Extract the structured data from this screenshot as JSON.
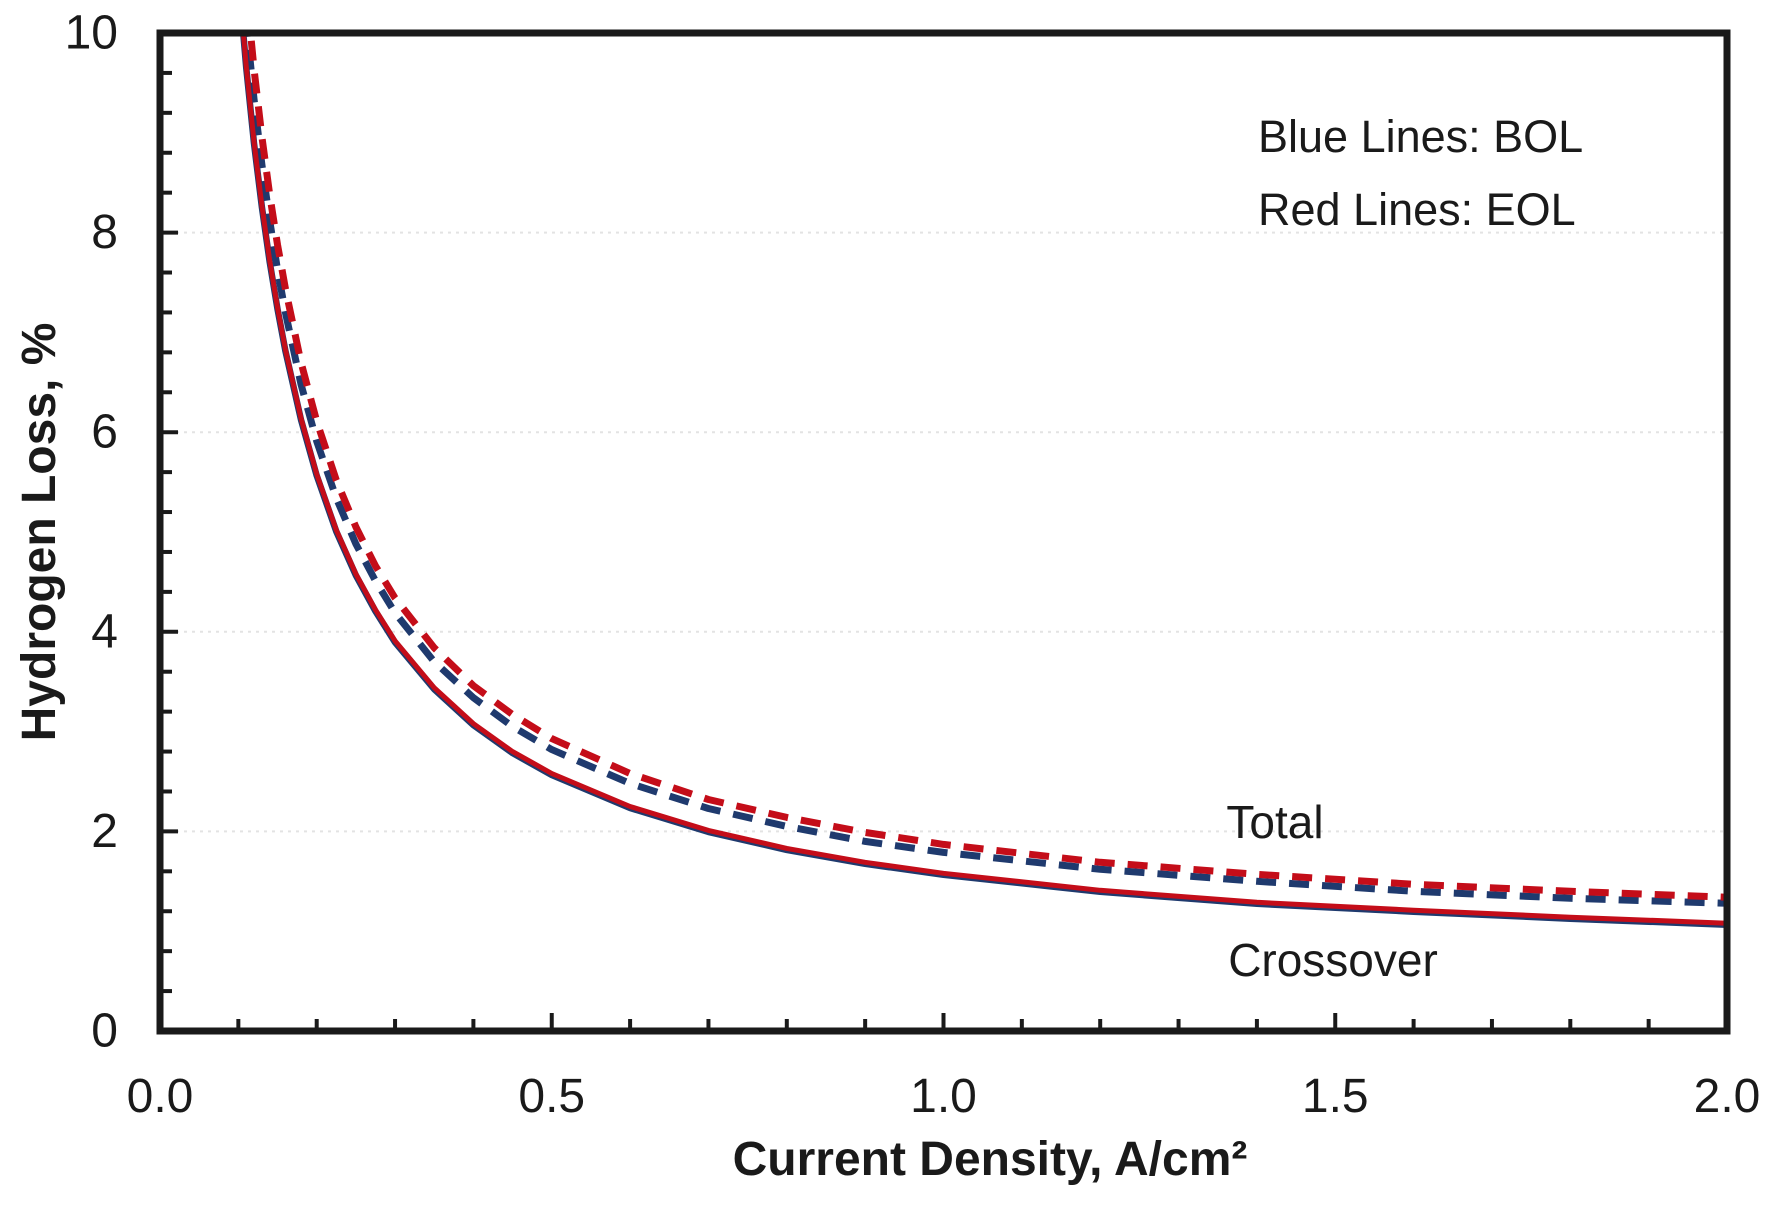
{
  "figure": {
    "background": "#ffffff"
  },
  "legend": {
    "line1": "Blue Lines: BOL",
    "line2": "Red Lines: EOL"
  },
  "annotations": {
    "total": "Total",
    "crossover": "Crossover"
  },
  "colors": {
    "bol_blue": "#1f3a6e",
    "eol_red": "#c40d19",
    "grid": "#e3e3e3",
    "axis": "#1a1a1a",
    "text": "#1a1a1a"
  },
  "chart_data": {
    "type": "line",
    "title": "",
    "xlabel": "Current Density, A/cm²",
    "ylabel": "Hydrogen Loss, %",
    "xlim": [
      0,
      2
    ],
    "ylim": [
      0,
      10
    ],
    "grid": "horizontal-dotted",
    "legend_position": "top-right-text",
    "x_major_ticks": [
      0,
      0.5,
      1.0,
      1.5,
      2.0
    ],
    "x_tick_labels": [
      "0.0",
      "0.5",
      "1.0",
      "1.5",
      "2.0"
    ],
    "x_minor_step": 0.1,
    "y_major_ticks": [
      0,
      2,
      4,
      6,
      8,
      10
    ],
    "y_tick_labels": [
      "0",
      "2",
      "4",
      "6",
      "8",
      "10"
    ],
    "y_minor_step": 0.4,
    "grid_y_values": [
      2,
      4,
      6,
      8
    ],
    "series": [
      {
        "name": "Total BOL",
        "color": "#1f3a6e",
        "style": "dashed",
        "points": [
          [
            0.1,
            11.08
          ],
          [
            0.11,
            10.14
          ],
          [
            0.12,
            9.36
          ],
          [
            0.13,
            8.7
          ],
          [
            0.14,
            8.14
          ],
          [
            0.15,
            7.65
          ],
          [
            0.16,
            7.22
          ],
          [
            0.18,
            6.5
          ],
          [
            0.2,
            5.93
          ],
          [
            0.225,
            5.36
          ],
          [
            0.25,
            4.9
          ],
          [
            0.275,
            4.53
          ],
          [
            0.3,
            4.21
          ],
          [
            0.35,
            3.72
          ],
          [
            0.4,
            3.36
          ],
          [
            0.45,
            3.07
          ],
          [
            0.5,
            2.84
          ],
          [
            0.6,
            2.5
          ],
          [
            0.7,
            2.25
          ],
          [
            0.8,
            2.07
          ],
          [
            0.9,
            1.92
          ],
          [
            1.0,
            1.81
          ],
          [
            1.2,
            1.64
          ],
          [
            1.4,
            1.52
          ],
          [
            1.6,
            1.42
          ],
          [
            1.8,
            1.35
          ],
          [
            2.0,
            1.3
          ]
        ]
      },
      {
        "name": "Total EOL",
        "color": "#c40d19",
        "style": "dashed",
        "points": [
          [
            0.105,
            10.91
          ],
          [
            0.11,
            10.45
          ],
          [
            0.12,
            9.64
          ],
          [
            0.13,
            8.96
          ],
          [
            0.14,
            8.38
          ],
          [
            0.15,
            7.88
          ],
          [
            0.16,
            7.44
          ],
          [
            0.18,
            6.7
          ],
          [
            0.2,
            6.11
          ],
          [
            0.225,
            5.52
          ],
          [
            0.25,
            5.05
          ],
          [
            0.275,
            4.66
          ],
          [
            0.3,
            4.34
          ],
          [
            0.35,
            3.84
          ],
          [
            0.4,
            3.46
          ],
          [
            0.45,
            3.17
          ],
          [
            0.5,
            2.93
          ],
          [
            0.6,
            2.58
          ],
          [
            0.7,
            2.32
          ],
          [
            0.8,
            2.14
          ],
          [
            0.9,
            1.99
          ],
          [
            1.0,
            1.87
          ],
          [
            1.2,
            1.69
          ],
          [
            1.4,
            1.57
          ],
          [
            1.6,
            1.47
          ],
          [
            1.8,
            1.4
          ],
          [
            2.0,
            1.34
          ]
        ]
      },
      {
        "name": "Crossover BOL",
        "color": "#1f3a6e",
        "style": "solid",
        "points": [
          [
            0.095,
            11.11
          ],
          [
            0.1,
            10.58
          ],
          [
            0.11,
            9.67
          ],
          [
            0.12,
            8.91
          ],
          [
            0.13,
            8.27
          ],
          [
            0.14,
            7.72
          ],
          [
            0.15,
            7.25
          ],
          [
            0.16,
            6.83
          ],
          [
            0.18,
            6.14
          ],
          [
            0.2,
            5.58
          ],
          [
            0.225,
            5.02
          ],
          [
            0.25,
            4.58
          ],
          [
            0.275,
            4.22
          ],
          [
            0.3,
            3.91
          ],
          [
            0.35,
            3.44
          ],
          [
            0.4,
            3.08
          ],
          [
            0.45,
            2.8
          ],
          [
            0.5,
            2.58
          ],
          [
            0.6,
            2.25
          ],
          [
            0.7,
            2.01
          ],
          [
            0.8,
            1.83
          ],
          [
            0.9,
            1.69
          ],
          [
            1.0,
            1.58
          ],
          [
            1.2,
            1.41
          ],
          [
            1.4,
            1.29
          ],
          [
            1.6,
            1.21
          ],
          [
            1.8,
            1.14
          ],
          [
            2.0,
            1.08
          ]
        ]
      },
      {
        "name": "Crossover EOL",
        "color": "#c40d19",
        "style": "solid",
        "points": [
          [
            0.095,
            11.11
          ],
          [
            0.1,
            10.58
          ],
          [
            0.11,
            9.67
          ],
          [
            0.12,
            8.91
          ],
          [
            0.13,
            8.27
          ],
          [
            0.14,
            7.72
          ],
          [
            0.15,
            7.25
          ],
          [
            0.16,
            6.83
          ],
          [
            0.18,
            6.14
          ],
          [
            0.2,
            5.58
          ],
          [
            0.225,
            5.02
          ],
          [
            0.25,
            4.58
          ],
          [
            0.275,
            4.22
          ],
          [
            0.3,
            3.91
          ],
          [
            0.35,
            3.44
          ],
          [
            0.4,
            3.08
          ],
          [
            0.45,
            2.8
          ],
          [
            0.5,
            2.58
          ],
          [
            0.6,
            2.25
          ],
          [
            0.7,
            2.01
          ],
          [
            0.8,
            1.83
          ],
          [
            0.9,
            1.69
          ],
          [
            1.0,
            1.58
          ],
          [
            1.2,
            1.41
          ],
          [
            1.4,
            1.29
          ],
          [
            1.6,
            1.21
          ],
          [
            1.8,
            1.14
          ],
          [
            2.0,
            1.08
          ]
        ]
      }
    ]
  }
}
